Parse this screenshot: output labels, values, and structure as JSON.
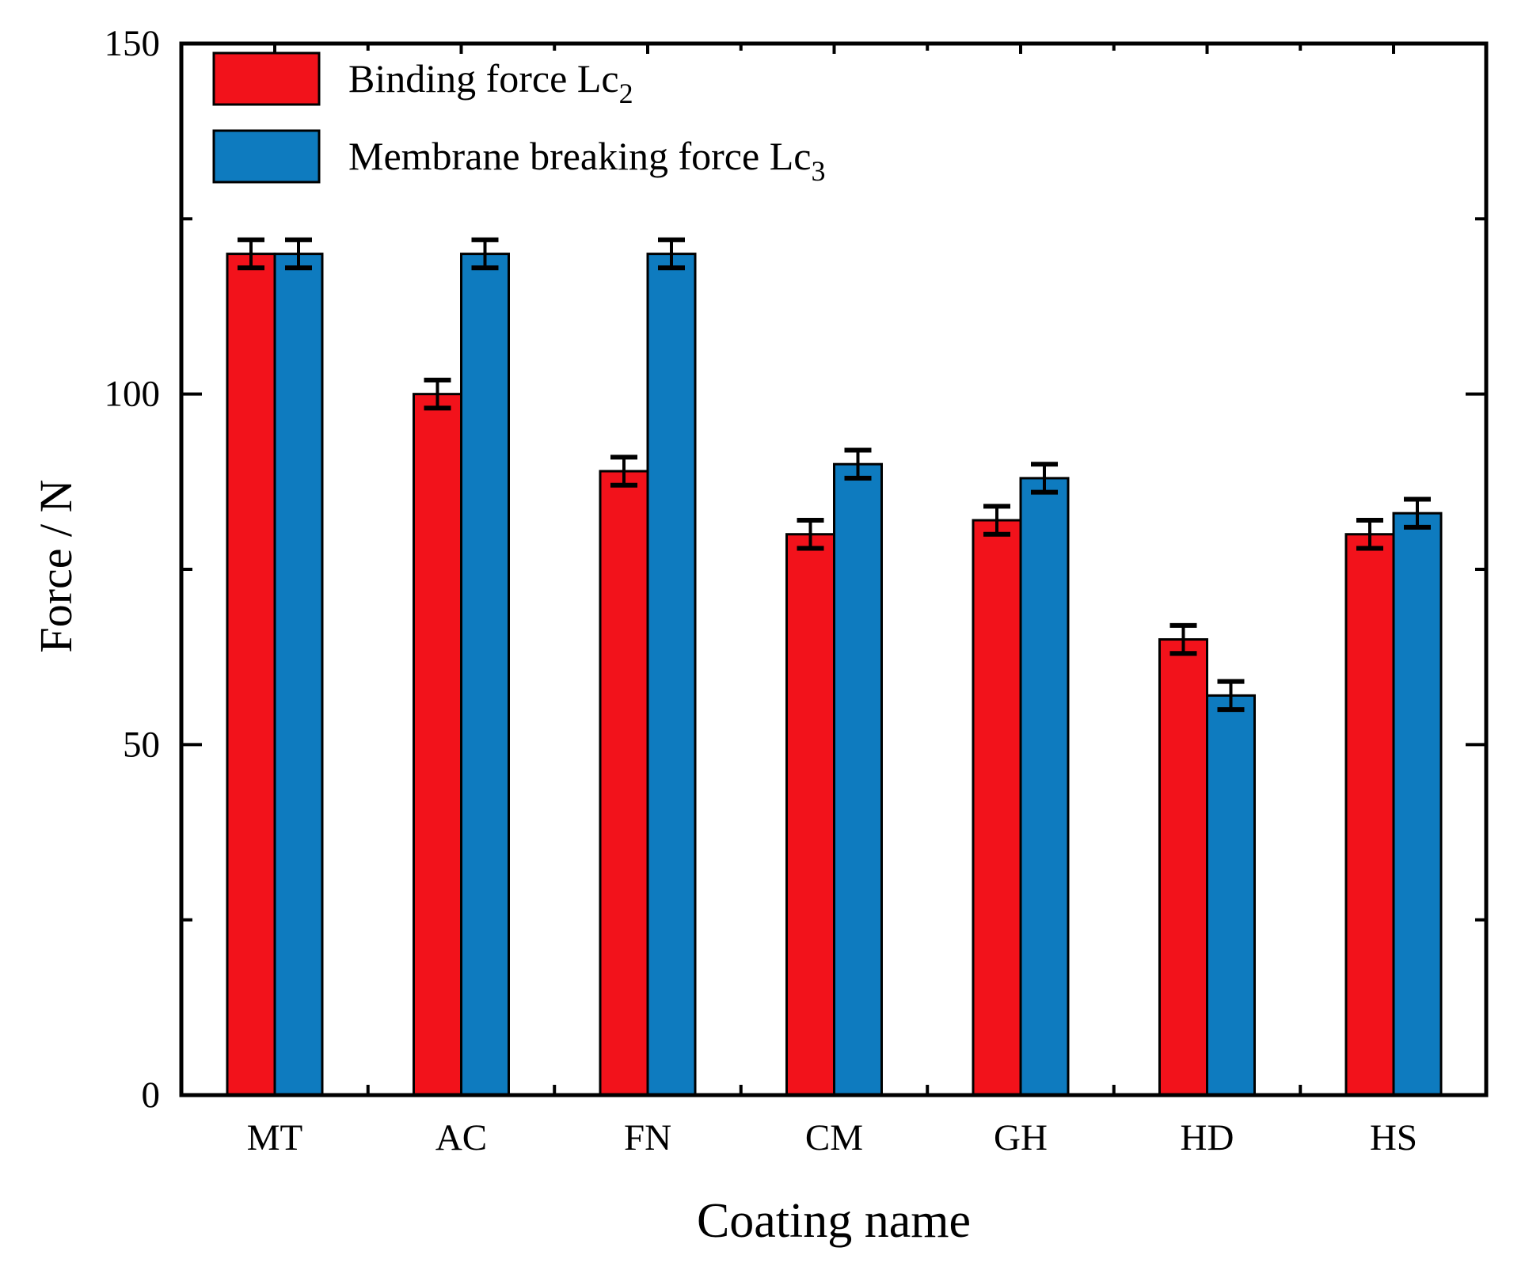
{
  "figure": {
    "background": "#ffffff"
  },
  "chart_data": {
    "type": "bar",
    "title": "",
    "xlabel": "Coating name",
    "ylabel": "Force / N",
    "ylim": [
      0,
      150
    ],
    "yticks_major": [
      0,
      50,
      100,
      150
    ],
    "yticks_minor": [
      25,
      75,
      125
    ],
    "grid": false,
    "legend_position": "top-left-inside",
    "categories": [
      "MT",
      "AC",
      "FN",
      "CM",
      "GH",
      "HD",
      "HS"
    ],
    "series": [
      {
        "name": "Binding force Lc",
        "name_subscript": "2",
        "color": "#f2121b",
        "values": [
          120,
          100,
          89,
          80,
          82,
          65,
          80
        ],
        "errors": [
          2,
          2,
          2,
          2,
          2,
          2,
          2
        ]
      },
      {
        "name": "Membrane breaking force Lc",
        "name_subscript": "3",
        "color": "#0e7bbf",
        "values": [
          120,
          120,
          120,
          90,
          88,
          57,
          83
        ],
        "errors": [
          2,
          2,
          2,
          2,
          2,
          2,
          2
        ]
      }
    ],
    "bar_outline_color": "#000000",
    "axis_color": "#000000",
    "errorbar_color": "#000000"
  }
}
